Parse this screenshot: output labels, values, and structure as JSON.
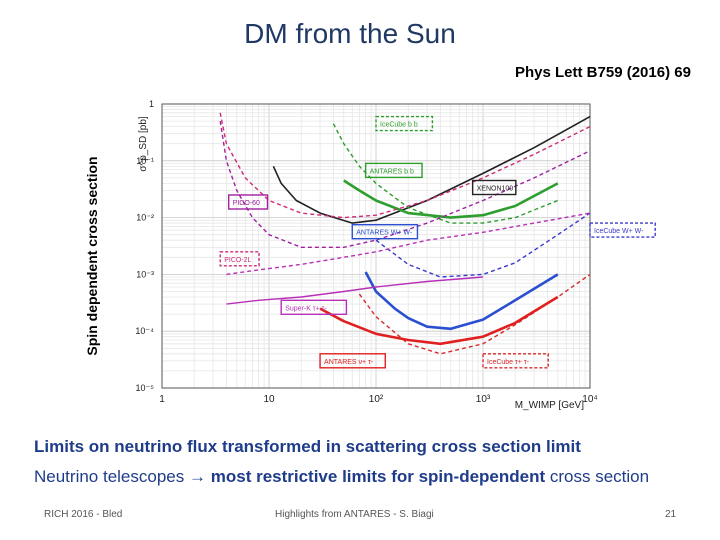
{
  "slide": {
    "title": "DM from the Sun",
    "reference": "Phys Lett B759 (2016) 69",
    "side_label": "Spin dependent cross section",
    "line1": "Limits on neutrino flux transformed in scattering cross section limit",
    "line2_a": "Neutrino telescopes",
    "line2_arrow": "→",
    "line2_b": "most restrictive limits for",
    "line2_c": "spin-dependent",
    "line2_d": "cross section",
    "footer_left": "RICH 2016 - Bled",
    "footer_center": "Highlights from ANTARES - S. Biagi",
    "footer_right": "21"
  },
  "chart_data": {
    "type": "line",
    "xscale": "log",
    "yscale": "log",
    "xlim": [
      1,
      10000
    ],
    "ylim": [
      1e-05,
      1
    ],
    "xlabel": "M_WIMP [GeV]",
    "ylabel": "σ^p_SD [pb]",
    "xticks": [
      "1",
      "10",
      "10²",
      "10³",
      "10⁴"
    ],
    "yticks": [
      "1",
      "10⁻¹",
      "10⁻²",
      "10⁻³",
      "10⁻⁴",
      "10⁻⁵"
    ],
    "series": [
      {
        "name": "XENON100",
        "color": "#222222",
        "dash": "solid",
        "width": 1.6,
        "points": [
          [
            11,
            0.08
          ],
          [
            13,
            0.04
          ],
          [
            18,
            0.02
          ],
          [
            30,
            0.012
          ],
          [
            60,
            0.008
          ],
          [
            100,
            0.009
          ],
          [
            300,
            0.02
          ],
          [
            1000,
            0.06
          ],
          [
            3000,
            0.17
          ],
          [
            10000,
            0.6
          ]
        ]
      },
      {
        "name": "IceCube b b",
        "color": "#2e9e2e",
        "dash": "dashed",
        "width": 1.4,
        "points": [
          [
            40,
            0.45
          ],
          [
            50,
            0.2
          ],
          [
            70,
            0.08
          ],
          [
            100,
            0.04
          ],
          [
            200,
            0.015
          ],
          [
            500,
            0.008
          ],
          [
            1000,
            0.008
          ],
          [
            2000,
            0.01
          ],
          [
            5000,
            0.02
          ]
        ]
      },
      {
        "name": "ANTARES b b",
        "color": "#2e9e2e",
        "dash": "solid",
        "width": 2.6,
        "points": [
          [
            50,
            0.045
          ],
          [
            70,
            0.03
          ],
          [
            100,
            0.02
          ],
          [
            200,
            0.012
          ],
          [
            500,
            0.01
          ],
          [
            1000,
            0.011
          ],
          [
            2000,
            0.016
          ],
          [
            5000,
            0.04
          ]
        ]
      },
      {
        "name": "IceCube W+ W-",
        "color": "#3a3ad0",
        "dash": "dashed",
        "width": 1.4,
        "points": [
          [
            100,
            0.004
          ],
          [
            200,
            0.0015
          ],
          [
            400,
            0.0009
          ],
          [
            1000,
            0.001
          ],
          [
            2000,
            0.0016
          ],
          [
            5000,
            0.005
          ],
          [
            10000,
            0.012
          ]
        ]
      },
      {
        "name": "ANTARES W+ W-",
        "color": "#2a4fd0",
        "dash": "solid",
        "width": 2.6,
        "points": [
          [
            80,
            0.0011
          ],
          [
            100,
            0.0005
          ],
          [
            150,
            0.00025
          ],
          [
            200,
            0.00017
          ],
          [
            300,
            0.00012
          ],
          [
            500,
            0.00011
          ],
          [
            1000,
            0.00016
          ],
          [
            2000,
            0.00035
          ],
          [
            5000,
            0.001
          ]
        ]
      },
      {
        "name": "IceCube τ+ τ-",
        "color": "#d42a2a",
        "dash": "dashed",
        "width": 1.4,
        "points": [
          [
            70,
            0.00045
          ],
          [
            100,
            0.00018
          ],
          [
            200,
            6e-05
          ],
          [
            400,
            4e-05
          ],
          [
            1000,
            6e-05
          ],
          [
            2000,
            0.00013
          ],
          [
            5000,
            0.0004
          ],
          [
            10000,
            0.001
          ]
        ]
      },
      {
        "name": "ANTARES τ+ τ-",
        "color": "#e02020",
        "dash": "solid",
        "width": 2.6,
        "points": [
          [
            30,
            0.00025
          ],
          [
            50,
            0.00015
          ],
          [
            100,
            9e-05
          ],
          [
            200,
            7e-05
          ],
          [
            400,
            6e-05
          ],
          [
            1000,
            8e-05
          ],
          [
            2000,
            0.00014
          ],
          [
            5000,
            0.0004
          ]
        ]
      },
      {
        "name": "Super-K τ+ τ-",
        "color": "#b830b8",
        "dash": "dashed",
        "width": 1.4,
        "points": [
          [
            4,
            0.001
          ],
          [
            8,
            0.0012
          ],
          [
            20,
            0.0015
          ],
          [
            50,
            0.002
          ],
          [
            100,
            0.0025
          ],
          [
            300,
            0.004
          ],
          [
            1000,
            0.0055
          ],
          [
            3000,
            0.008
          ],
          [
            10000,
            0.012
          ]
        ]
      },
      {
        "name": "Super-K τ+ τ- (solid)",
        "color": "#b830b8",
        "dash": "solid",
        "width": 1.4,
        "points": [
          [
            4,
            0.0003
          ],
          [
            8,
            0.00035
          ],
          [
            20,
            0.0004
          ],
          [
            50,
            0.0005
          ],
          [
            100,
            0.0006
          ],
          [
            300,
            0.00075
          ],
          [
            1000,
            0.0009
          ]
        ]
      },
      {
        "name": "PICO-60",
        "color": "#a020a0",
        "dash": "dashed",
        "width": 1.4,
        "points": [
          [
            3.5,
            0.5
          ],
          [
            4,
            0.1
          ],
          [
            5,
            0.03
          ],
          [
            7,
            0.01
          ],
          [
            10,
            0.005
          ],
          [
            20,
            0.003
          ],
          [
            50,
            0.003
          ],
          [
            100,
            0.004
          ],
          [
            300,
            0.008
          ],
          [
            1000,
            0.02
          ],
          [
            3000,
            0.05
          ],
          [
            10000,
            0.15
          ]
        ]
      },
      {
        "name": "PICO-2L",
        "color": "#d02a7a",
        "dash": "dashed",
        "width": 1.4,
        "points": [
          [
            3.5,
            0.7
          ],
          [
            4,
            0.2
          ],
          [
            6,
            0.05
          ],
          [
            10,
            0.02
          ],
          [
            20,
            0.012
          ],
          [
            50,
            0.01
          ],
          [
            100,
            0.011
          ],
          [
            300,
            0.02
          ],
          [
            1000,
            0.05
          ],
          [
            3000,
            0.13
          ],
          [
            10000,
            0.4
          ]
        ]
      }
    ],
    "labels": [
      {
        "text": "IceCube b b",
        "color": "#2e9e2e",
        "box": "dashed",
        "x": 100,
        "y": 0.6
      },
      {
        "text": "ANTARES b b",
        "color": "#2e9e2e",
        "box": "solid",
        "x": 80,
        "y": 0.09
      },
      {
        "text": "XENON100",
        "color": "#222222",
        "box": "solid",
        "x": 800,
        "y": 0.045
      },
      {
        "text": "PICO-60",
        "color": "#a020a0",
        "box": "solid",
        "x": 4.2,
        "y": 0.025
      },
      {
        "text": "ANTARES W+ W-",
        "color": "#2a4fd0",
        "box": "solid",
        "x": 60,
        "y": 0.0075
      },
      {
        "text": "IceCube W+ W-",
        "color": "#3a3ad0",
        "box": "dashed",
        "x": 10000,
        "y": 0.008
      },
      {
        "text": "PICO-2L",
        "color": "#d02a7a",
        "box": "dashed",
        "x": 3.5,
        "y": 0.0025
      },
      {
        "text": "Super-K τ+ τ-",
        "color": "#b830b8",
        "box": "solid",
        "x": 13,
        "y": 0.00035
      },
      {
        "text": "ANTARES ν+ τ-",
        "color": "#e02020",
        "box": "solid",
        "x": 30,
        "y": 4e-05
      },
      {
        "text": "IceCube τ+ τ-",
        "color": "#d42a2a",
        "box": "dashed",
        "x": 1000,
        "y": 4e-05
      }
    ]
  }
}
